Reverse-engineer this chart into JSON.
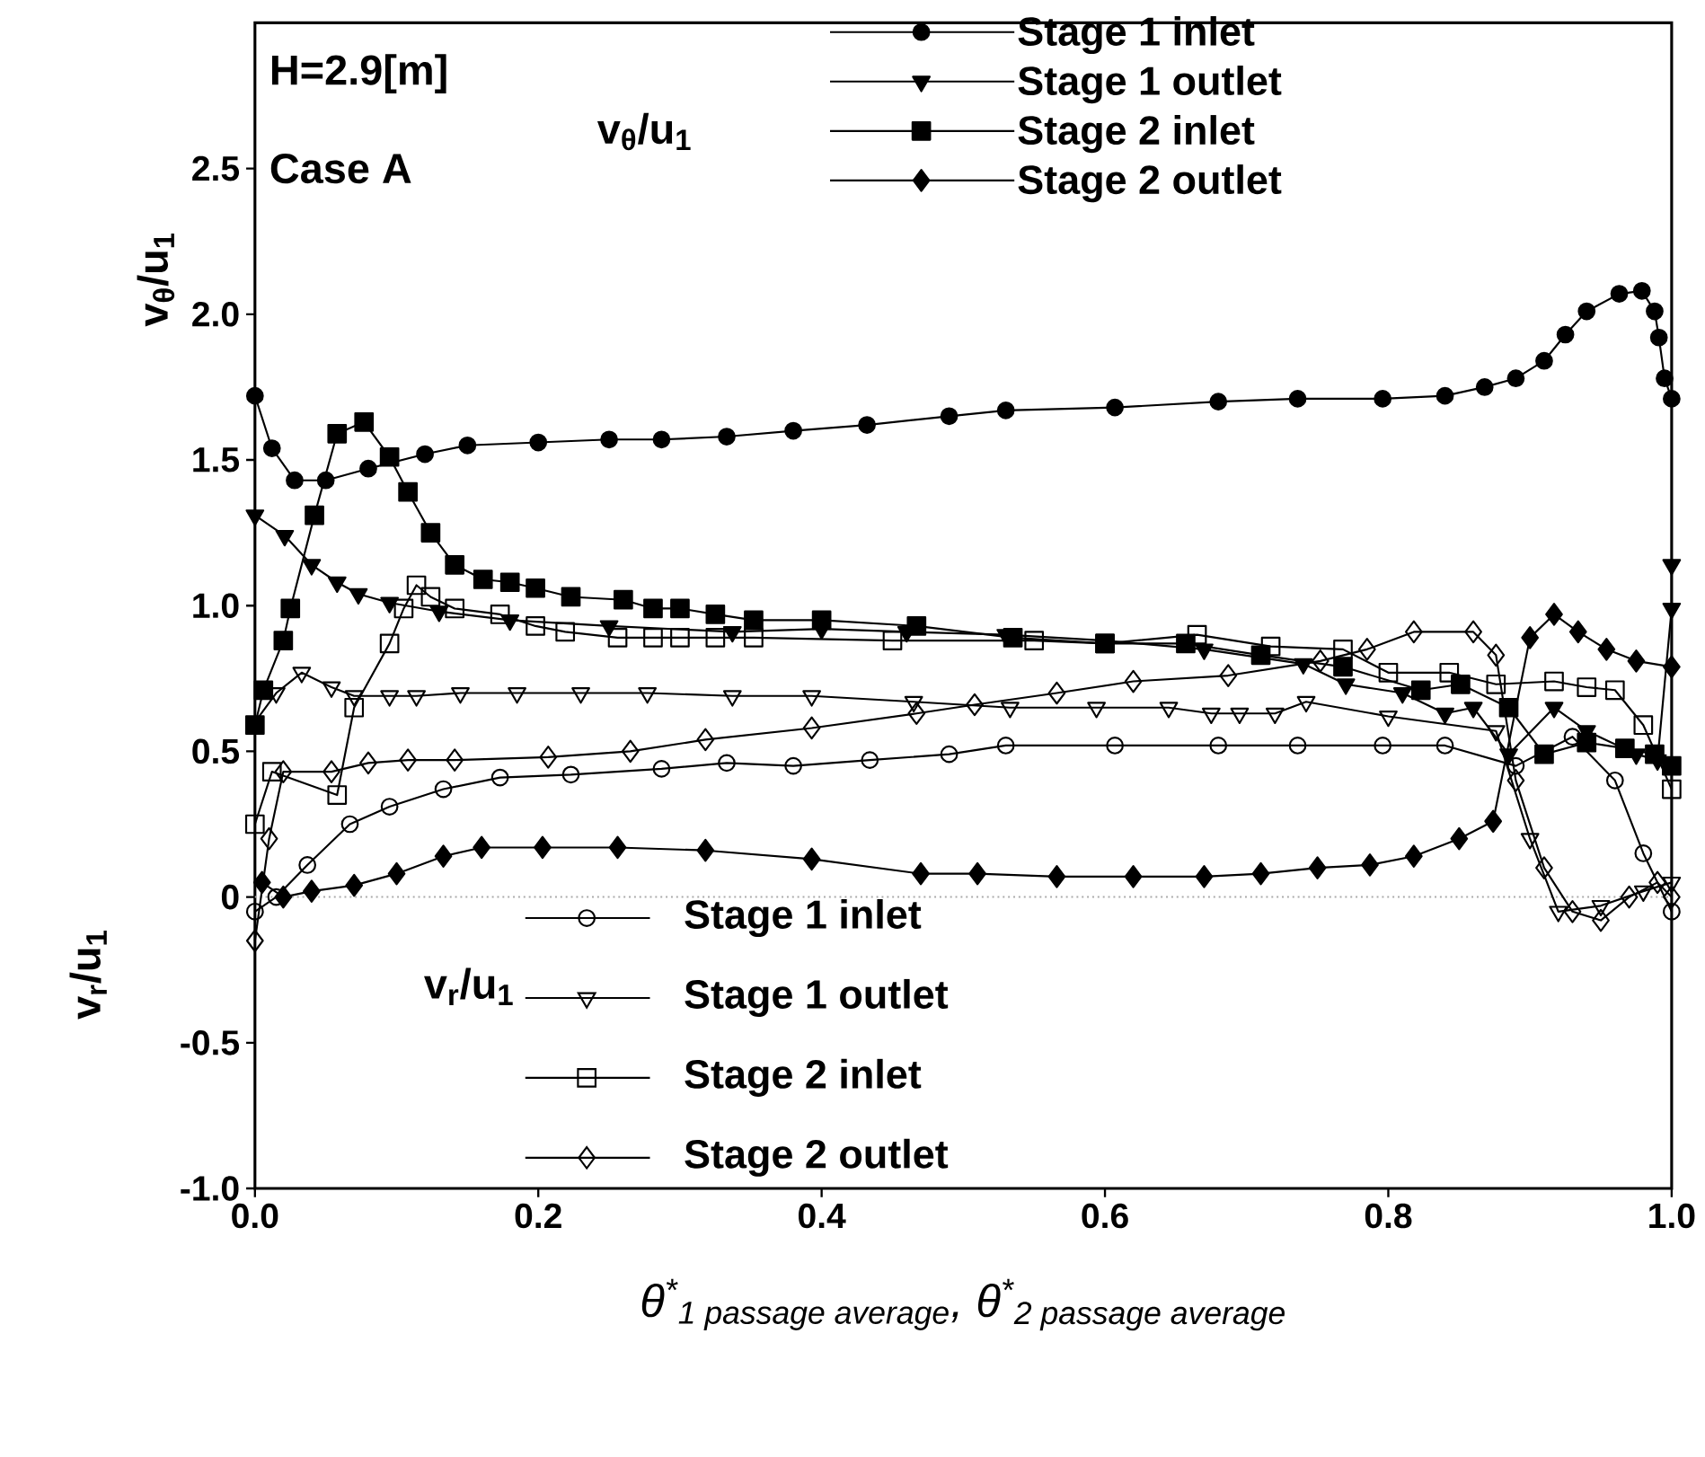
{
  "chart_data": {
    "type": "line",
    "xlabel": "θ$^{*}$$_{1 passage average}$, θ$^{*}$$_{2 passage average}$",
    "ylabel": "v$_{θ}$/u$_{1}$",
    "annotations": [
      "H=2.9[m]",
      "Case A",
      "v$_{θ}$/u$_{1}$",
      "v$_{r}$/u$_{1}$",
      "v$_{r}$/u$_{1}$"
    ],
    "xlim": [
      0,
      1.0
    ],
    "ylim": [
      -1.0,
      3.0
    ],
    "xticks": [
      {
        "value": 0,
        "label": "0.0"
      },
      0.2,
      0.4,
      0.6,
      0.8,
      {
        "value": 1.0,
        "label": "1.0"
      }
    ],
    "yticks": [
      {
        "value": -1.0,
        "label": "-1.0"
      },
      -0.5,
      0,
      0.5,
      {
        "value": 1.0,
        "label": "1.0"
      },
      1.5,
      {
        "value": 2.0,
        "label": "2.0"
      },
      2.5
    ],
    "legend": "top",
    "grid": false,
    "ref_lines": [
      {
        "axis": "y",
        "value": 0,
        "color": "#aaaaaa",
        "line_style": "dotted"
      }
    ],
    "series": [
      {
        "name": "Stage 1 inlet",
        "color": "#000000",
        "marker": "circle",
        "x": [
          0,
          0.012,
          0.028,
          0.05,
          0.08,
          0.12,
          0.15,
          0.2,
          0.25,
          0.287,
          0.333,
          0.38,
          0.432,
          0.49,
          0.53,
          0.607,
          0.68,
          0.736,
          0.796,
          0.84,
          0.868,
          0.89,
          0.91,
          0.925,
          0.94,
          0.963,
          0.979,
          0.988,
          0.991,
          0.995,
          1.0
        ],
        "values": [
          1.72,
          1.54,
          1.43,
          1.43,
          1.47,
          1.52,
          1.55,
          1.56,
          1.57,
          1.57,
          1.58,
          1.6,
          1.62,
          1.65,
          1.67,
          1.68,
          1.7,
          1.71,
          1.71,
          1.72,
          1.75,
          1.78,
          1.84,
          1.93,
          2.01,
          2.07,
          2.08,
          2.01,
          1.92,
          1.78,
          1.71
        ]
      },
      {
        "name": "Stage 1 outlet",
        "color": "#000000",
        "marker": "triangle",
        "x": [
          0,
          0.021,
          0.04,
          0.058,
          0.073,
          0.095,
          0.13,
          0.18,
          0.25,
          0.337,
          0.4,
          0.46,
          0.53,
          0.6,
          0.67,
          0.74,
          0.77,
          0.81,
          0.84,
          0.86,
          0.885,
          0.917,
          0.94,
          0.975,
          0.99,
          1.0,
          1.0
        ],
        "values": [
          1.31,
          1.24,
          1.14,
          1.08,
          1.04,
          1.01,
          0.98,
          0.95,
          0.93,
          0.91,
          0.92,
          0.91,
          0.9,
          0.88,
          0.85,
          0.8,
          0.73,
          0.7,
          0.63,
          0.65,
          0.49,
          0.65,
          0.57,
          0.49,
          0.47,
          0.99,
          1.14
        ]
      },
      {
        "name": "Stage 2 inlet",
        "color": "#000000",
        "marker": "square",
        "x": [
          0,
          0.006,
          0.02,
          0.025,
          0.042,
          0.058,
          0.077,
          0.095,
          0.108,
          0.124,
          0.141,
          0.161,
          0.18,
          0.198,
          0.223,
          0.26,
          0.281,
          0.3,
          0.325,
          0.352,
          0.4,
          0.467,
          0.535,
          0.6,
          0.657,
          0.71,
          0.768,
          0.823,
          0.851,
          0.885,
          0.91,
          0.94,
          0.967,
          0.988,
          1.0
        ],
        "values": [
          0.59,
          0.71,
          0.88,
          0.99,
          1.31,
          1.59,
          1.63,
          1.51,
          1.39,
          1.25,
          1.14,
          1.09,
          1.08,
          1.06,
          1.03,
          1.02,
          0.99,
          0.99,
          0.97,
          0.95,
          0.95,
          0.93,
          0.89,
          0.87,
          0.87,
          0.83,
          0.79,
          0.71,
          0.73,
          0.65,
          0.49,
          0.53,
          0.51,
          0.49,
          0.45
        ]
      },
      {
        "name": "Stage 2 outlet",
        "color": "#000000",
        "marker": "diamond",
        "x": [
          0.005,
          0.02,
          0.04,
          0.07,
          0.1,
          0.133,
          0.16,
          0.203,
          0.256,
          0.318,
          0.393,
          0.47,
          0.51,
          0.566,
          0.62,
          0.67,
          0.71,
          0.75,
          0.787,
          0.818,
          0.85,
          0.874,
          0.9,
          0.917,
          0.934,
          0.954,
          0.975,
          1.0
        ],
        "values": [
          0.05,
          0.0,
          0.02,
          0.04,
          0.08,
          0.14,
          0.17,
          0.17,
          0.17,
          0.16,
          0.13,
          0.08,
          0.08,
          0.07,
          0.07,
          0.07,
          0.08,
          0.1,
          0.11,
          0.14,
          0.2,
          0.26,
          0.89,
          0.97,
          0.91,
          0.85,
          0.81,
          0.79
        ]
      },
      {
        "name": "Stage 1 inlet",
        "color": "#000000",
        "marker": "circle",
        "x": [
          0,
          0.015,
          0.037,
          0.067,
          0.095,
          0.133,
          0.173,
          0.223,
          0.287,
          0.333,
          0.38,
          0.434,
          0.49,
          0.53,
          0.607,
          0.68,
          0.736,
          0.796,
          0.84,
          0.89,
          0.93,
          0.96,
          0.98,
          1.0
        ],
        "values": [
          -0.05,
          0.0,
          0.11,
          0.25,
          0.31,
          0.37,
          0.41,
          0.42,
          0.44,
          0.46,
          0.45,
          0.47,
          0.49,
          0.52,
          0.52,
          0.52,
          0.52,
          0.52,
          0.52,
          0.45,
          0.55,
          0.4,
          0.15,
          -0.05
        ]
      },
      {
        "name": "Stage 1 outlet",
        "color": "#000000",
        "marker": "triangle",
        "x": [
          0,
          0.015,
          0.033,
          0.054,
          0.07,
          0.095,
          0.114,
          0.145,
          0.185,
          0.23,
          0.277,
          0.337,
          0.393,
          0.465,
          0.533,
          0.594,
          0.645,
          0.675,
          0.695,
          0.72,
          0.742,
          0.8,
          0.876,
          0.9,
          0.92,
          0.95,
          0.98,
          1.0
        ],
        "values": [
          0.6,
          0.7,
          0.77,
          0.72,
          0.69,
          0.69,
          0.69,
          0.7,
          0.7,
          0.7,
          0.7,
          0.69,
          0.69,
          0.67,
          0.65,
          0.65,
          0.65,
          0.63,
          0.63,
          0.63,
          0.67,
          0.62,
          0.57,
          0.2,
          -0.05,
          -0.03,
          0.02,
          0.05
        ]
      },
      {
        "name": "Stage 2 inlet",
        "color": "#000000",
        "marker": "square",
        "x": [
          0,
          0.012,
          0.058,
          0.07,
          0.095,
          0.105,
          0.114,
          0.124,
          0.141,
          0.173,
          0.198,
          0.219,
          0.256,
          0.281,
          0.3,
          0.325,
          0.352,
          0.45,
          0.55,
          0.6,
          0.665,
          0.717,
          0.768,
          0.8,
          0.843,
          0.876,
          0.917,
          0.94,
          0.96,
          0.98,
          1.0
        ],
        "values": [
          0.25,
          0.43,
          0.35,
          0.65,
          0.87,
          0.99,
          1.07,
          1.03,
          0.99,
          0.97,
          0.93,
          0.91,
          0.89,
          0.89,
          0.89,
          0.89,
          0.89,
          0.88,
          0.88,
          0.87,
          0.9,
          0.86,
          0.85,
          0.77,
          0.77,
          0.73,
          0.74,
          0.72,
          0.71,
          0.59,
          0.37
        ]
      },
      {
        "name": "Stage 2 outlet",
        "color": "#000000",
        "marker": "diamond",
        "x": [
          0,
          0.01,
          0.02,
          0.054,
          0.08,
          0.108,
          0.141,
          0.207,
          0.265,
          0.318,
          0.393,
          0.467,
          0.508,
          0.566,
          0.62,
          0.687,
          0.752,
          0.785,
          0.818,
          0.86,
          0.876,
          0.89,
          0.91,
          0.93,
          0.95,
          0.97,
          0.99,
          1.0
        ],
        "values": [
          -0.15,
          0.2,
          0.43,
          0.43,
          0.46,
          0.47,
          0.47,
          0.48,
          0.5,
          0.54,
          0.58,
          0.63,
          0.66,
          0.7,
          0.74,
          0.76,
          0.81,
          0.85,
          0.91,
          0.91,
          0.83,
          0.4,
          0.1,
          -0.05,
          -0.08,
          0.0,
          0.05,
          0.0
        ]
      }
    ]
  }
}
